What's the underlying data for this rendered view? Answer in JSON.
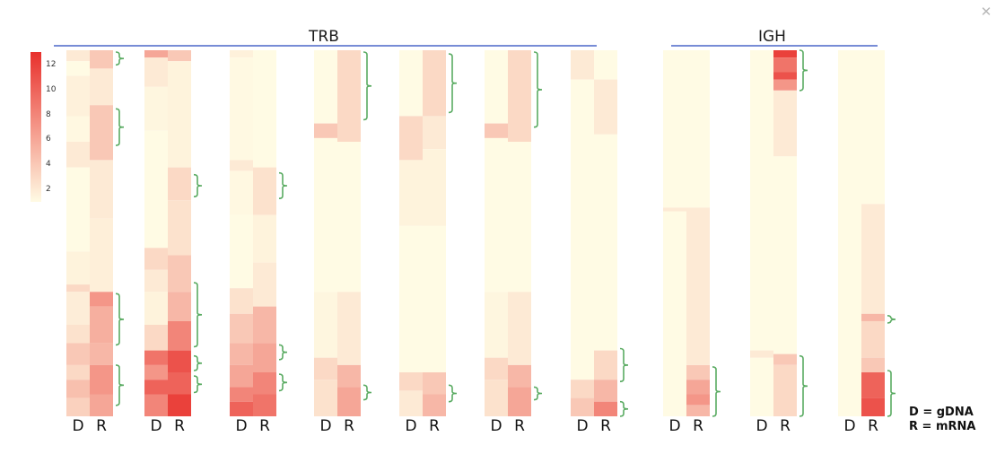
{
  "close_icon": "close-icon",
  "colors": {
    "low": "#fffbe4",
    "high": "#e8302c",
    "bracket": "#5aab62",
    "group_line": "#4a66c9"
  },
  "chart_data": {
    "type": "heatmap",
    "title": "",
    "colorbar": {
      "ticks": [
        2,
        4,
        6,
        8,
        10,
        12
      ],
      "range": [
        1,
        13
      ]
    },
    "groups": [
      {
        "name": "TRB",
        "panels": [
          0,
          1,
          2,
          3,
          4,
          5,
          6
        ]
      },
      {
        "name": "IGH",
        "panels": [
          7,
          8,
          9
        ]
      }
    ],
    "column_labels": [
      "D",
      "R"
    ],
    "legend": [
      "D = gDNA",
      "R = mRNA"
    ],
    "panels": [
      {
        "D": [
          [
            0,
            0.03,
            2
          ],
          [
            0.03,
            0.07,
            1
          ],
          [
            0.07,
            0.18,
            1.6
          ],
          [
            0.18,
            0.25,
            1.2
          ],
          [
            0.25,
            0.32,
            2
          ],
          [
            0.32,
            0.55,
            1
          ],
          [
            0.55,
            0.64,
            1.5
          ],
          [
            0.64,
            0.66,
            3
          ],
          [
            0.66,
            0.75,
            1.8
          ],
          [
            0.75,
            0.8,
            2.5
          ],
          [
            0.8,
            0.86,
            4
          ],
          [
            0.86,
            0.9,
            3
          ],
          [
            0.9,
            0.95,
            4.5
          ],
          [
            0.95,
            1.0,
            3.5
          ]
        ],
        "R": [
          [
            0,
            0.05,
            4
          ],
          [
            0.05,
            0.15,
            2
          ],
          [
            0.15,
            0.3,
            4
          ],
          [
            0.3,
            0.46,
            2
          ],
          [
            0.46,
            0.66,
            1.7
          ],
          [
            0.66,
            0.7,
            7
          ],
          [
            0.7,
            0.8,
            5.5
          ],
          [
            0.8,
            0.86,
            5
          ],
          [
            0.86,
            0.94,
            7
          ],
          [
            0.94,
            1.0,
            6
          ]
        ],
        "brackets": [
          [
            0.005,
            0.04
          ],
          [
            0.16,
            0.26
          ],
          [
            0.665,
            0.805
          ],
          [
            0.86,
            0.97
          ]
        ]
      },
      {
        "D": [
          [
            0,
            0.02,
            6
          ],
          [
            0.02,
            0.1,
            2
          ],
          [
            0.1,
            0.22,
            1.3
          ],
          [
            0.22,
            0.54,
            1
          ],
          [
            0.54,
            0.6,
            3
          ],
          [
            0.6,
            0.66,
            2
          ],
          [
            0.66,
            0.75,
            1.5
          ],
          [
            0.75,
            0.82,
            3
          ],
          [
            0.82,
            0.86,
            9
          ],
          [
            0.86,
            0.9,
            7
          ],
          [
            0.9,
            0.94,
            10
          ],
          [
            0.94,
            1.0,
            8
          ]
        ],
        "R": [
          [
            0,
            0.03,
            4
          ],
          [
            0.03,
            0.32,
            1.5
          ],
          [
            0.32,
            0.41,
            3
          ],
          [
            0.41,
            0.56,
            2.5
          ],
          [
            0.56,
            0.66,
            4
          ],
          [
            0.66,
            0.74,
            5
          ],
          [
            0.74,
            0.82,
            8
          ],
          [
            0.82,
            0.88,
            11
          ],
          [
            0.88,
            0.94,
            10
          ],
          [
            0.94,
            1.0,
            12
          ]
        ],
        "brackets": [
          [
            0.34,
            0.4
          ],
          [
            0.635,
            0.81
          ],
          [
            0.835,
            0.875
          ],
          [
            0.89,
            0.935
          ]
        ]
      },
      {
        "D": [
          [
            0,
            0.02,
            1.6
          ],
          [
            0.02,
            0.3,
            1.1
          ],
          [
            0.3,
            0.33,
            2
          ],
          [
            0.33,
            0.45,
            1.2
          ],
          [
            0.45,
            0.65,
            1
          ],
          [
            0.65,
            0.72,
            2.5
          ],
          [
            0.72,
            0.8,
            4
          ],
          [
            0.8,
            0.86,
            5
          ],
          [
            0.86,
            0.92,
            6
          ],
          [
            0.92,
            0.96,
            8
          ],
          [
            0.96,
            1.0,
            10
          ]
        ],
        "R": [
          [
            0,
            0.32,
            1
          ],
          [
            0.32,
            0.45,
            2.5
          ],
          [
            0.45,
            0.58,
            1.5
          ],
          [
            0.58,
            0.7,
            2
          ],
          [
            0.7,
            0.8,
            5
          ],
          [
            0.8,
            0.88,
            6
          ],
          [
            0.88,
            0.94,
            8
          ],
          [
            0.94,
            1.0,
            9
          ]
        ],
        "brackets": [
          [
            0.335,
            0.405
          ],
          [
            0.805,
            0.845
          ],
          [
            0.885,
            0.93
          ]
        ]
      },
      {
        "D": [
          [
            0,
            0.2,
            1
          ],
          [
            0.2,
            0.24,
            4
          ],
          [
            0.24,
            0.66,
            1
          ],
          [
            0.66,
            0.84,
            1.3
          ],
          [
            0.84,
            0.9,
            3
          ],
          [
            0.9,
            1.0,
            2.5
          ]
        ],
        "R": [
          [
            0,
            0.25,
            3
          ],
          [
            0.25,
            0.66,
            1
          ],
          [
            0.66,
            0.86,
            2
          ],
          [
            0.86,
            0.92,
            5
          ],
          [
            0.92,
            1.0,
            6
          ]
        ],
        "brackets": [
          [
            0.005,
            0.19
          ],
          [
            0.915,
            0.955
          ]
        ]
      },
      {
        "D": [
          [
            0,
            0.18,
            1
          ],
          [
            0.18,
            0.3,
            3
          ],
          [
            0.3,
            0.48,
            1.5
          ],
          [
            0.48,
            0.88,
            1
          ],
          [
            0.88,
            0.93,
            3
          ],
          [
            0.93,
            1.0,
            2
          ]
        ],
        "R": [
          [
            0,
            0.18,
            3
          ],
          [
            0.18,
            0.27,
            2
          ],
          [
            0.27,
            0.48,
            1.5
          ],
          [
            0.48,
            0.88,
            1
          ],
          [
            0.88,
            0.94,
            4
          ],
          [
            0.94,
            1.0,
            5
          ]
        ],
        "brackets": [
          [
            0.01,
            0.17
          ],
          [
            0.915,
            0.96
          ]
        ]
      },
      {
        "D": [
          [
            0,
            0.2,
            1
          ],
          [
            0.2,
            0.24,
            4
          ],
          [
            0.24,
            0.66,
            1
          ],
          [
            0.66,
            0.84,
            1.3
          ],
          [
            0.84,
            0.9,
            3
          ],
          [
            0.9,
            1.0,
            2.5
          ]
        ],
        "R": [
          [
            0,
            0.25,
            3
          ],
          [
            0.25,
            0.66,
            1
          ],
          [
            0.66,
            0.86,
            2
          ],
          [
            0.86,
            0.92,
            5
          ],
          [
            0.92,
            1.0,
            6
          ]
        ],
        "brackets": [
          [
            0.005,
            0.21
          ],
          [
            0.92,
            0.955
          ]
        ]
      },
      {
        "D": [
          [
            0,
            0.08,
            2
          ],
          [
            0.08,
            0.9,
            1
          ],
          [
            0.9,
            0.95,
            3
          ],
          [
            0.95,
            1.0,
            4
          ]
        ],
        "R": [
          [
            0,
            0.08,
            1
          ],
          [
            0.08,
            0.23,
            2
          ],
          [
            0.23,
            0.82,
            1
          ],
          [
            0.82,
            0.9,
            3
          ],
          [
            0.9,
            0.96,
            5
          ],
          [
            0.96,
            1.0,
            8
          ]
        ],
        "brackets": [
          [
            0.815,
            0.905
          ],
          [
            0.96,
            1.0
          ]
        ]
      },
      {
        "D": [
          [
            0,
            0.43,
            1
          ],
          [
            0.43,
            0.44,
            2
          ],
          [
            0.44,
            1.0,
            1
          ]
        ],
        "R": [
          [
            0,
            0.43,
            1
          ],
          [
            0.43,
            0.86,
            2
          ],
          [
            0.86,
            0.9,
            4
          ],
          [
            0.9,
            0.94,
            6
          ],
          [
            0.94,
            0.97,
            7
          ],
          [
            0.97,
            1.0,
            5
          ]
        ],
        "brackets": [
          [
            0.865,
            1.0
          ]
        ]
      },
      {
        "D": [
          [
            0,
            0.82,
            1
          ],
          [
            0.82,
            0.84,
            2
          ],
          [
            0.84,
            1.0,
            1
          ]
        ],
        "R": [
          [
            0,
            0.02,
            12
          ],
          [
            0.02,
            0.06,
            9
          ],
          [
            0.06,
            0.08,
            11
          ],
          [
            0.08,
            0.11,
            7
          ],
          [
            0.11,
            0.29,
            2
          ],
          [
            0.29,
            0.83,
            1
          ],
          [
            0.83,
            0.86,
            4
          ],
          [
            0.86,
            1.0,
            3
          ]
        ],
        "brackets": [
          [
            0.0,
            0.11
          ],
          [
            0.835,
            1.0
          ]
        ]
      },
      {
        "D": [
          [
            0,
            1.0,
            1
          ]
        ],
        "R": [
          [
            0,
            0.42,
            1
          ],
          [
            0.42,
            0.72,
            2
          ],
          [
            0.72,
            0.74,
            5
          ],
          [
            0.74,
            0.84,
            3
          ],
          [
            0.84,
            0.88,
            4
          ],
          [
            0.88,
            0.95,
            10
          ],
          [
            0.95,
            1.0,
            11
          ]
        ],
        "brackets": [
          [
            0.725,
            0.745
          ],
          [
            0.875,
            1.0
          ]
        ]
      }
    ]
  }
}
